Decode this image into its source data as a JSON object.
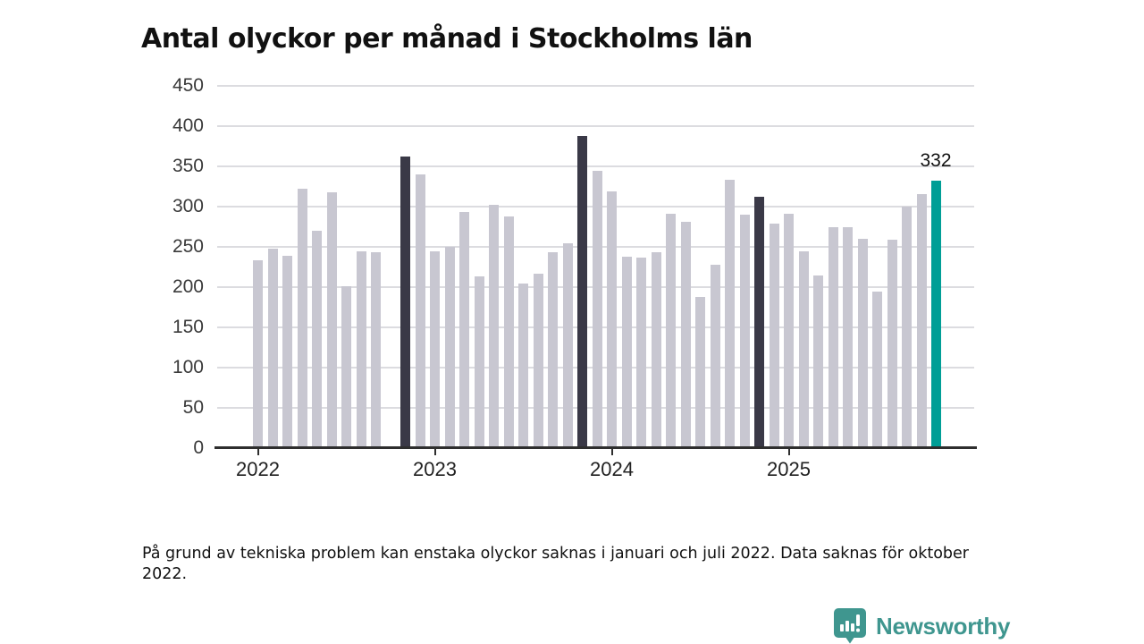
{
  "title": "Antal olyckor per månad i Stockholms län",
  "footnote": "På grund av tekniska problem kan enstaka olyckor saknas i januari och juli 2022. Data saknas för oktober 2022.",
  "annotation": {
    "label": "332"
  },
  "logo": {
    "name": "Newsworthy"
  },
  "colors": {
    "bar_base": "#c8c7d1",
    "bar_dark": "#3a3947",
    "bar_current": "#009e96",
    "grid": "#dcdce0",
    "axis": "#2e2e2e",
    "logo_teal": "#3f968f"
  },
  "chart_data": {
    "type": "bar",
    "title": "Antal olyckor per månad i Stockholms län",
    "xlabel": "",
    "ylabel": "",
    "ylim": [
      0,
      450
    ],
    "yticks": [
      0,
      50,
      100,
      150,
      200,
      250,
      300,
      350,
      400,
      450
    ],
    "grid": "horizontal",
    "legend": "none",
    "highlight": "November bars shown dark; latest month (Nov 2025) shown teal with data label 332; October 2022 missing (gap)",
    "years": [
      {
        "label": "2022",
        "month_index": 0
      },
      {
        "label": "2023",
        "month_index": 12
      },
      {
        "label": "2024",
        "month_index": 24
      },
      {
        "label": "2025",
        "month_index": 36
      }
    ],
    "months": [
      {
        "month": "2022-01",
        "value": 233,
        "style": "base"
      },
      {
        "month": "2022-02",
        "value": 248,
        "style": "base"
      },
      {
        "month": "2022-03",
        "value": 239,
        "style": "base"
      },
      {
        "month": "2022-04",
        "value": 322,
        "style": "base"
      },
      {
        "month": "2022-05",
        "value": 270,
        "style": "base"
      },
      {
        "month": "2022-06",
        "value": 318,
        "style": "base"
      },
      {
        "month": "2022-07",
        "value": 201,
        "style": "base"
      },
      {
        "month": "2022-08",
        "value": 244,
        "style": "base"
      },
      {
        "month": "2022-09",
        "value": 243,
        "style": "base"
      },
      {
        "month": "2022-10",
        "value": null,
        "style": "missing"
      },
      {
        "month": "2022-11",
        "value": 362,
        "style": "dark"
      },
      {
        "month": "2022-12",
        "value": 340,
        "style": "base"
      },
      {
        "month": "2023-01",
        "value": 244,
        "style": "base"
      },
      {
        "month": "2023-02",
        "value": 250,
        "style": "base"
      },
      {
        "month": "2023-03",
        "value": 293,
        "style": "base"
      },
      {
        "month": "2023-04",
        "value": 213,
        "style": "base"
      },
      {
        "month": "2023-05",
        "value": 302,
        "style": "base"
      },
      {
        "month": "2023-06",
        "value": 288,
        "style": "base"
      },
      {
        "month": "2023-07",
        "value": 205,
        "style": "base"
      },
      {
        "month": "2023-08",
        "value": 217,
        "style": "base"
      },
      {
        "month": "2023-09",
        "value": 243,
        "style": "base"
      },
      {
        "month": "2023-10",
        "value": 255,
        "style": "base"
      },
      {
        "month": "2023-11",
        "value": 388,
        "style": "dark"
      },
      {
        "month": "2023-12",
        "value": 345,
        "style": "base"
      },
      {
        "month": "2024-01",
        "value": 319,
        "style": "base"
      },
      {
        "month": "2024-02",
        "value": 238,
        "style": "base"
      },
      {
        "month": "2024-03",
        "value": 237,
        "style": "base"
      },
      {
        "month": "2024-04",
        "value": 243,
        "style": "base"
      },
      {
        "month": "2024-05",
        "value": 291,
        "style": "base"
      },
      {
        "month": "2024-06",
        "value": 281,
        "style": "base"
      },
      {
        "month": "2024-07",
        "value": 188,
        "style": "base"
      },
      {
        "month": "2024-08",
        "value": 228,
        "style": "base"
      },
      {
        "month": "2024-09",
        "value": 333,
        "style": "base"
      },
      {
        "month": "2024-10",
        "value": 290,
        "style": "base"
      },
      {
        "month": "2024-11",
        "value": 312,
        "style": "dark"
      },
      {
        "month": "2024-12",
        "value": 279,
        "style": "base"
      },
      {
        "month": "2025-01",
        "value": 291,
        "style": "base"
      },
      {
        "month": "2025-02",
        "value": 245,
        "style": "base"
      },
      {
        "month": "2025-03",
        "value": 215,
        "style": "base"
      },
      {
        "month": "2025-04",
        "value": 274,
        "style": "base"
      },
      {
        "month": "2025-05",
        "value": 274,
        "style": "base"
      },
      {
        "month": "2025-06",
        "value": 260,
        "style": "base"
      },
      {
        "month": "2025-07",
        "value": 194,
        "style": "base"
      },
      {
        "month": "2025-08",
        "value": 259,
        "style": "base"
      },
      {
        "month": "2025-09",
        "value": 300,
        "style": "base"
      },
      {
        "month": "2025-10",
        "value": 316,
        "style": "base"
      },
      {
        "month": "2025-11",
        "value": 332,
        "style": "current"
      }
    ]
  }
}
